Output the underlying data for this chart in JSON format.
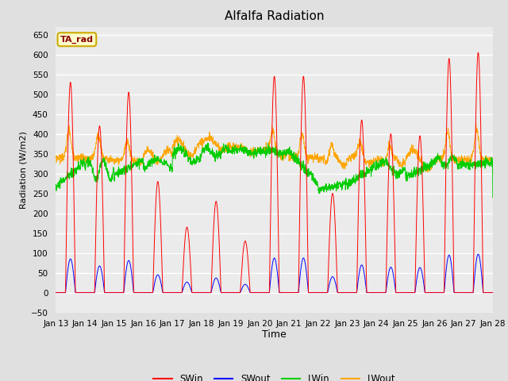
{
  "title": "Alfalfa Radiation",
  "xlabel": "Time",
  "ylabel": "Radiation (W/m2)",
  "ylim": [
    -50,
    670
  ],
  "yticks": [
    -50,
    0,
    50,
    100,
    150,
    200,
    250,
    300,
    350,
    400,
    450,
    500,
    550,
    600,
    650
  ],
  "annotation_text": "TA_rad",
  "annotation_box_color": "#FFFFCC",
  "annotation_box_edge": "#CCAA00",
  "series_colors": {
    "SWin": "#FF0000",
    "SWout": "#0000FF",
    "LWin": "#00CC00",
    "LWout": "#FFA500"
  },
  "bg_color": "#E0E0E0",
  "plot_bg_color": "#EBEBEB",
  "grid_color": "#FFFFFF",
  "n_points": 2160,
  "days": 15,
  "start_day": 13
}
